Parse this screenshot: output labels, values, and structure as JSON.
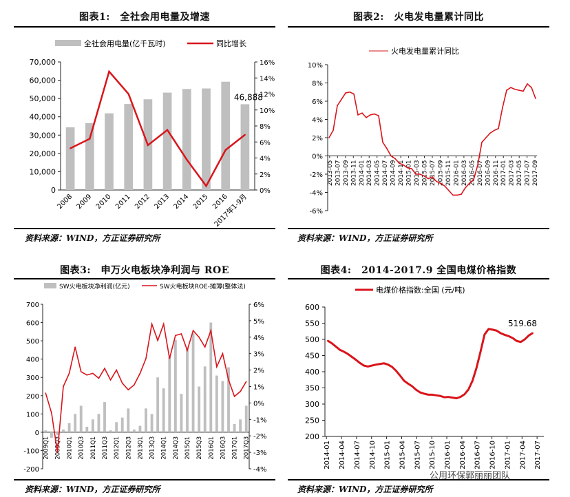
{
  "source_text": "资料来源：WIND，方正证券研究所",
  "watermark": "公用环保郭丽丽团队",
  "chart_data": [
    {
      "id": "c1",
      "type": "bar",
      "title": "图表1:　全社会用电量及增速",
      "legend_bar": "全社会用电量(亿千瓦时)",
      "legend_line": "同比增长",
      "categories": [
        "2008",
        "2009",
        "2010",
        "2011",
        "2012",
        "2013",
        "2014",
        "2015",
        "2016",
        "2017年1-9月"
      ],
      "series": [
        {
          "name": "全社会用电量(亿千瓦时)",
          "type": "bar",
          "values": [
            34268,
            36595,
            41923,
            47001,
            49591,
            53223,
            55233,
            55500,
            59198,
            46888
          ]
        },
        {
          "name": "同比增长",
          "type": "line",
          "values": [
            5.2,
            6.4,
            14.8,
            12.0,
            5.6,
            7.5,
            3.8,
            0.5,
            5.0,
            6.9
          ]
        }
      ],
      "left_ticks": [
        "0",
        "10,000",
        "20,000",
        "30,000",
        "40,000",
        "50,000",
        "60,000",
        "70,000"
      ],
      "right_ticks": [
        "0%",
        "2%",
        "4%",
        "6%",
        "8%",
        "10%",
        "12%",
        "14%",
        "16%"
      ],
      "ylim": [
        0,
        70000
      ],
      "y2lim": [
        0,
        16
      ],
      "data_label": "46,888"
    },
    {
      "id": "c2",
      "type": "line",
      "title": "图表2:　火电发电量累计同比",
      "legend": "火电发电量累计同比",
      "x_ticks": [
        "2013-05",
        "2013-07",
        "2013-09",
        "2013-11",
        "2014-01",
        "2014-03",
        "2014-05",
        "2014-07",
        "2014-09",
        "2014-11",
        "2015-01",
        "2015-03",
        "2015-05",
        "2015-07",
        "2015-09",
        "2015-11",
        "2016-01",
        "2016-03",
        "2016-05",
        "2016-07",
        "2016-09",
        "2016-11",
        "2017-01",
        "2017-03",
        "2017-05",
        "2017-07",
        "2017-09"
      ],
      "y_ticks": [
        "-6%",
        "-4%",
        "-2%",
        "0%",
        "2%",
        "4%",
        "6%",
        "8%",
        "10%"
      ],
      "ylim": [
        -6,
        10
      ],
      "series": [
        {
          "name": "火电发电量累计同比",
          "values": [
            2.0,
            2.8,
            5.5,
            6.2,
            6.9,
            7.0,
            6.8,
            4.5,
            4.7,
            4.2,
            4.5,
            4.6,
            4.4,
            1.5,
            0.8,
            0.0,
            -0.3,
            -0.8,
            -1.0,
            -1.3,
            -1.4,
            -2.0,
            -2.0,
            -2.2,
            -2.5,
            -2.3,
            -2.8,
            -3.0,
            -3.3,
            -3.8,
            -4.3,
            -4.3,
            -4.2,
            -3.5,
            -3.0,
            -2.6,
            -1.0,
            1.5,
            2.0,
            2.5,
            2.8,
            3.0,
            5.3,
            7.2,
            7.5,
            7.3,
            7.2,
            7.1,
            7.9,
            7.5,
            6.3
          ]
        }
      ]
    },
    {
      "id": "c3",
      "type": "bar",
      "title": "图表3:　申万火电板块净利润与 ROE",
      "legend_bar": "SW火电板块净利润(亿元)",
      "legend_line": "SW火电板块ROE-摊薄(整体法)",
      "categories": [
        "2009Q1",
        "2009Q2",
        "2009Q3",
        "2009Q4",
        "2010Q1",
        "2010Q2",
        "2010Q3",
        "2010Q4",
        "2011Q1",
        "2011Q2",
        "2011Q3",
        "2011Q4",
        "2012Q1",
        "2012Q2",
        "2012Q3",
        "2012Q4",
        "2013Q1",
        "2013Q2",
        "2013Q3",
        "2013Q4",
        "2014Q1",
        "2014Q2",
        "2014Q3",
        "2014Q4",
        "2015Q1",
        "2015Q2",
        "2015Q3",
        "2015Q4",
        "2016Q1",
        "2016Q2",
        "2016Q3",
        "2016Q4",
        "2017Q1",
        "2017Q2",
        "2017Q3"
      ],
      "x_tick_labels": [
        "2009Q1",
        "2009Q3",
        "2010Q1",
        "2010Q3",
        "2011Q1",
        "2011Q3",
        "2012Q1",
        "2012Q3",
        "2013Q1",
        "2013Q3",
        "2014Q1",
        "2014Q3",
        "2015Q1",
        "2015Q3",
        "2016Q1",
        "2016Q3",
        "2017Q1",
        "2017Q3"
      ],
      "series": [
        {
          "name": "SW火电板块净利润(亿元)",
          "type": "bar",
          "values": [
            10,
            -30,
            -15,
            15,
            50,
            100,
            145,
            30,
            70,
            100,
            165,
            10,
            55,
            80,
            130,
            15,
            35,
            130,
            100,
            300,
            240,
            410,
            505,
            210,
            460,
            540,
            250,
            360,
            600,
            310,
            280,
            355,
            45,
            70,
            145
          ]
        },
        {
          "name": "SW火电板块ROE-摊薄(整体法)",
          "type": "line",
          "values": [
            0.6,
            -0.6,
            -3.0,
            1.0,
            1.8,
            3.4,
            1.9,
            1.7,
            1.8,
            1.5,
            2.1,
            1.4,
            2.0,
            1.2,
            0.8,
            1.1,
            1.8,
            2.7,
            4.8,
            3.8,
            4.8,
            2.7,
            4.1,
            4.2,
            3.2,
            4.4,
            4.0,
            3.4,
            4.4,
            2.2,
            3.0,
            1.4,
            0.4,
            0.7,
            1.3
          ]
        }
      ],
      "left_ticks": [
        "-200",
        "-100",
        "0",
        "100",
        "200",
        "300",
        "400",
        "500",
        "600",
        "700"
      ],
      "right_ticks": [
        "-4%",
        "-3%",
        "-2%",
        "-1%",
        "0%",
        "1%",
        "2%",
        "3%",
        "4%",
        "5%",
        "6%"
      ],
      "ylim": [
        -200,
        700
      ],
      "y2lim": [
        -4,
        6
      ]
    },
    {
      "id": "c4",
      "type": "line",
      "title": "图表4:　2014-2017.9 全国电煤价格指数",
      "legend": "电煤价格指数:全国 (元/吨)",
      "x_ticks": [
        "2014-01",
        "2014-04",
        "2014-07",
        "2014-10",
        "2015-01",
        "2015-04",
        "2015-07",
        "2015-10",
        "2016-01",
        "2016-04",
        "2016-07",
        "2016-10",
        "2017-01",
        "2017-04",
        "2017-07"
      ],
      "y_ticks": [
        "200",
        "250",
        "300",
        "350",
        "400",
        "450",
        "500",
        "550",
        "600"
      ],
      "ylim": [
        200,
        600
      ],
      "data_label": "519.68",
      "series": [
        {
          "name": "电煤价格指数:全国 (元/吨)",
          "values": [
            496,
            488,
            478,
            468,
            462,
            455,
            446,
            437,
            427,
            419,
            416,
            419,
            422,
            424,
            426,
            422,
            415,
            403,
            388,
            372,
            363,
            355,
            344,
            336,
            332,
            329,
            329,
            327,
            325,
            321,
            322,
            320,
            318,
            322,
            330,
            345,
            372,
            412,
            462,
            515,
            532,
            530,
            527,
            519,
            514,
            510,
            504,
            495,
            492,
            500,
            512,
            519.68
          ]
        }
      ]
    }
  ]
}
